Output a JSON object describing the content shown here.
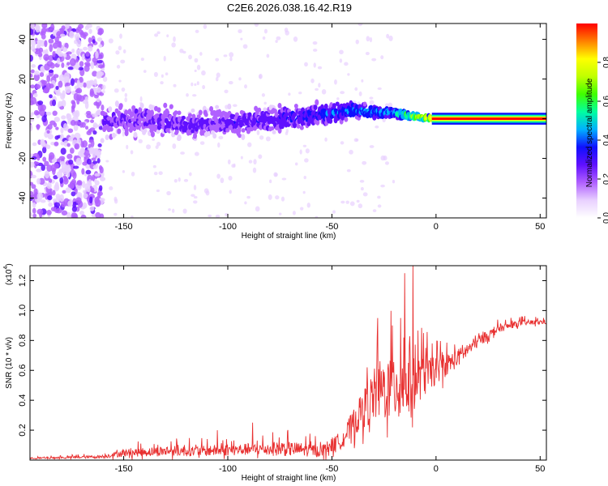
{
  "title": "C2E6.2026.038.16.42.R19",
  "chart_data": [
    {
      "type": "heatmap",
      "panel": "spectrogram",
      "xlabel": "Height of straight line (km)",
      "ylabel": "Frequency (Hz)",
      "xlim": [
        -195,
        53
      ],
      "ylim": [
        -50,
        48
      ],
      "xticks": [
        -150,
        -100,
        -50,
        0,
        50
      ],
      "xtick_labels": [
        "-150",
        "-100",
        "-50",
        "0",
        "50"
      ],
      "yticks": [
        -40,
        -20,
        0,
        20,
        40
      ],
      "ytick_labels": [
        "-40",
        "-20",
        "0",
        "20",
        "40"
      ],
      "colorbar": {
        "label": "Normalized spectral amplitude",
        "range": [
          0.0,
          1.0
        ],
        "ticks": [
          0.0,
          0.2,
          0.4,
          0.6,
          0.8
        ],
        "tick_labels": [
          "0.0",
          "0.2",
          "0.4",
          "0.6",
          "0.8"
        ],
        "colormap": [
          "#ffffff",
          "#e8d0ff",
          "#b060ff",
          "#6010ff",
          "#1010ff",
          "#00b0ff",
          "#00ffa0",
          "#40ff00",
          "#c0ff00",
          "#ffff00",
          "#ff8000",
          "#ff0000"
        ]
      },
      "ridge": {
        "x": [
          -160,
          -140,
          -120,
          -100,
          -80,
          -60,
          -40,
          -20,
          -10,
          0,
          20,
          53
        ],
        "freq": [
          -2,
          0,
          -3,
          -2,
          -1,
          2,
          4,
          3,
          1,
          0,
          0,
          0
        ],
        "amplitude": [
          0.22,
          0.25,
          0.26,
          0.27,
          0.28,
          0.35,
          0.42,
          0.48,
          0.7,
          0.95,
          1.0,
          1.0
        ],
        "halfwidth": [
          10,
          10,
          9,
          9,
          8,
          7,
          5,
          3,
          2,
          1,
          1,
          1
        ]
      },
      "noise_region_x": [
        -195,
        -160
      ]
    },
    {
      "type": "line",
      "panel": "snr",
      "xlabel": "Height of straight line (km)",
      "ylabel": "SNR (10 * v/v)",
      "y_multiplier": "(x10",
      "y_multiplier_exp": "4",
      "multiplier_close": ")",
      "xlim": [
        -195,
        53
      ],
      "ylim": [
        0,
        1.3
      ],
      "xticks": [
        -150,
        -100,
        -50,
        0,
        50
      ],
      "xtick_labels": [
        "-150",
        "-100",
        "-50",
        "0",
        "50"
      ],
      "yticks": [
        0.2,
        0.4,
        0.6,
        0.8,
        1.0,
        1.2
      ],
      "ytick_labels": [
        "0.2",
        "0.4",
        "0.6",
        "0.8",
        "1.0",
        "1.2"
      ],
      "color": "#e83030",
      "envelope": {
        "x": [
          -195,
          -160,
          -150,
          -130,
          -110,
          -90,
          -70,
          -55,
          -45,
          -35,
          -28,
          -22,
          -18,
          -15,
          -12,
          -10,
          -8,
          -5,
          0,
          10,
          20,
          30,
          40,
          53
        ],
        "baseline": [
          0.01,
          0.02,
          0.04,
          0.05,
          0.05,
          0.06,
          0.06,
          0.05,
          0.12,
          0.3,
          0.4,
          0.42,
          0.44,
          0.45,
          0.46,
          0.48,
          0.5,
          0.52,
          0.57,
          0.66,
          0.78,
          0.87,
          0.91,
          0.92
        ],
        "spread": [
          0.01,
          0.02,
          0.05,
          0.07,
          0.07,
          0.08,
          0.1,
          0.08,
          0.12,
          0.25,
          0.4,
          0.45,
          0.55,
          0.5,
          0.6,
          0.35,
          0.3,
          0.25,
          0.18,
          0.12,
          0.08,
          0.05,
          0.04,
          0.03
        ]
      },
      "peaks": [
        {
          "x": -11,
          "y": 1.3
        },
        {
          "x": -15,
          "y": 1.25
        },
        {
          "x": -17,
          "y": 0.95
        },
        {
          "x": -21,
          "y": 0.9
        },
        {
          "x": -28,
          "y": 0.95
        },
        {
          "x": -33,
          "y": 0.62
        },
        {
          "x": -6,
          "y": 0.85
        },
        {
          "x": -5,
          "y": 0.75
        },
        {
          "x": -88,
          "y": 0.25
        },
        {
          "x": -105,
          "y": 0.2
        }
      ]
    }
  ]
}
